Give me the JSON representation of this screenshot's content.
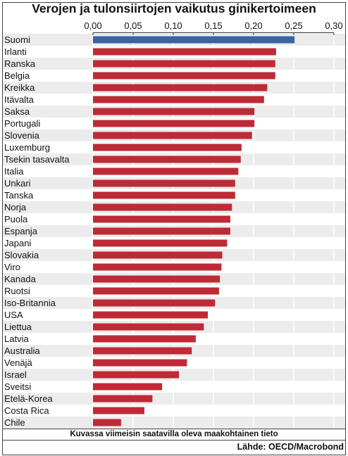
{
  "title": "Verojen ja tulonsiirtojen vaikutus ginikertoimeen",
  "footnote": "Kuvassa viimeisin saatavilla oleva maakohtainen tieto",
  "source": "Lähde: OECD/Macrobond",
  "colors": {
    "highlight": "#3c63a3",
    "bar": "#bf2a37",
    "stripe": "#ececec",
    "background": "#ffffff",
    "grid": "#ffffff"
  },
  "chart_data": {
    "type": "bar",
    "orientation": "horizontal",
    "categories": [
      "Suomi",
      "Irlanti",
      "Ranska",
      "Belgia",
      "Kreikka",
      "Itävalta",
      "Saksa",
      "Portugali",
      "Slovenia",
      "Luxemburg",
      "Tsekin tasavalta",
      "Italia",
      "Unkari",
      "Tanska",
      "Norja",
      "Puola",
      "Espanja",
      "Japani",
      "Slovakia",
      "Viro",
      "Kanada",
      "Ruotsi",
      "Iso-Britannia",
      "USA",
      "Liettua",
      "Latvia",
      "Australia",
      "Venäjä",
      "Israel",
      "Sveitsi",
      "Etelä-Korea",
      "Costa Rica",
      "Chile"
    ],
    "values": [
      0.251,
      0.228,
      0.227,
      0.227,
      0.217,
      0.213,
      0.201,
      0.201,
      0.198,
      0.185,
      0.184,
      0.181,
      0.177,
      0.177,
      0.173,
      0.171,
      0.171,
      0.167,
      0.161,
      0.16,
      0.158,
      0.157,
      0.152,
      0.143,
      0.138,
      0.128,
      0.123,
      0.117,
      0.107,
      0.086,
      0.074,
      0.064,
      0.035
    ],
    "highlight_category": "Suomi",
    "xlim": [
      0,
      0.3
    ],
    "ticks": [
      "0,00",
      "0,05",
      "0,10",
      "0,15",
      "0,20",
      "0,25",
      "0,30"
    ],
    "tick_values": [
      0,
      0.05,
      0.1,
      0.15,
      0.2,
      0.25,
      0.3
    ],
    "axis_position": "top",
    "grid": true,
    "legend": "none",
    "xlabel": "",
    "ylabel": ""
  }
}
